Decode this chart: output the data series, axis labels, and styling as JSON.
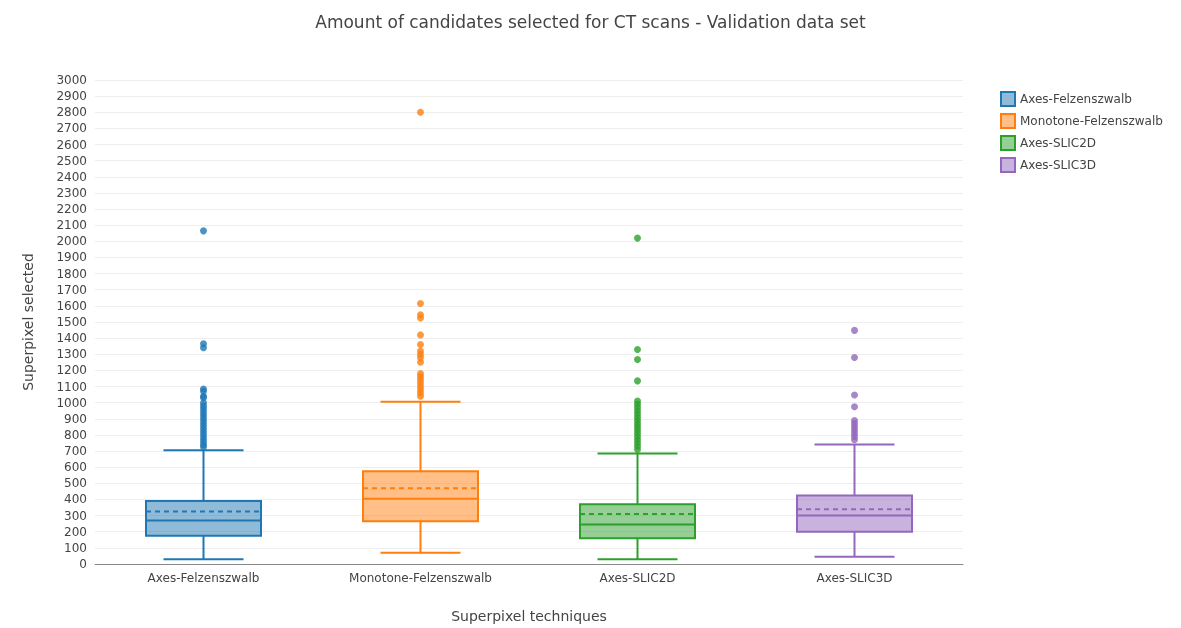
{
  "chart_data": {
    "type": "box",
    "title": "Amount of candidates selected for CT scans - Validation data set",
    "xlabel": "Superpixel techniques",
    "ylabel": "Superpixel selected",
    "categories": [
      "Axes-Felzenszwalb",
      "Monotone-Felzenszwalb",
      "Axes-SLIC2D",
      "Axes-SLIC3D"
    ],
    "series": [
      {
        "name": "Axes-Felzenszwalb",
        "color": "#1f77b4",
        "boxes": [
          {
            "low": 30,
            "q1": 175,
            "median": 270,
            "q3": 390,
            "high": 705,
            "mean": 325,
            "outliers": [
              2065,
              1365,
              1340,
              1085,
              1070,
              1040,
              1030,
              1000,
              980,
              960,
              940,
              920,
              900,
              880,
              860,
              840,
              820,
              800,
              780,
              760,
              740,
              725
            ]
          },
          null,
          null,
          null
        ]
      },
      {
        "name": "Monotone-Felzenszwalb",
        "color": "#ff7f0e",
        "boxes": [
          null,
          {
            "low": 70,
            "q1": 265,
            "median": 405,
            "q3": 575,
            "high": 1005,
            "mean": 470,
            "outliers": [
              2800,
              1615,
              1545,
              1525,
              1420,
              1360,
              1320,
              1300,
              1280,
              1250,
              1180,
              1160,
              1140,
              1120,
              1100,
              1080,
              1060,
              1040
            ]
          },
          null,
          null
        ]
      },
      {
        "name": "Axes-SLIC2D",
        "color": "#2ca02c",
        "boxes": [
          null,
          null,
          {
            "low": 30,
            "q1": 160,
            "median": 245,
            "q3": 370,
            "high": 685,
            "mean": 310,
            "outliers": [
              2020,
              1330,
              1267,
              1135,
              1010,
              990,
              970,
              950,
              930,
              910,
              890,
              870,
              850,
              830,
              810,
              790,
              770,
              750,
              730,
              710
            ]
          },
          null
        ]
      },
      {
        "name": "Axes-SLIC3D",
        "color": "#9467bd",
        "boxes": [
          null,
          null,
          null,
          {
            "low": 45,
            "q1": 200,
            "median": 300,
            "q3": 425,
            "high": 740,
            "mean": 340,
            "outliers": [
              1448,
              1280,
              1047,
              975,
              890,
              870,
              850,
              830,
              810,
              790,
              770
            ]
          }
        ]
      }
    ],
    "ylim": [
      0,
      3000
    ],
    "yticks": [
      0,
      100,
      200,
      300,
      400,
      500,
      600,
      700,
      800,
      900,
      1000,
      1100,
      1200,
      1300,
      1400,
      1500,
      1600,
      1700,
      1800,
      1900,
      2000,
      2100,
      2200,
      2300,
      2400,
      2500,
      2600,
      2700,
      2800,
      2900,
      3000
    ],
    "grid": "y",
    "legend": "top right"
  }
}
